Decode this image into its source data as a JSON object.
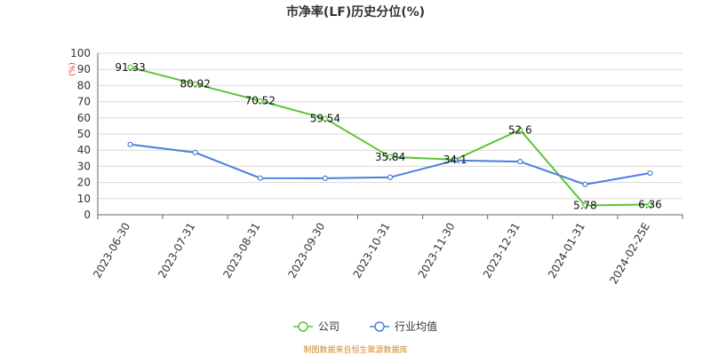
{
  "chart_data": {
    "type": "line",
    "title": "市净率(LF)历史分位(%)",
    "unit": "(%)",
    "ylim": [
      0,
      100
    ],
    "yticks": [
      0,
      10,
      20,
      30,
      40,
      50,
      60,
      70,
      80,
      90,
      100
    ],
    "categories": [
      "2023-06-30",
      "2023-07-31",
      "2023-08-31",
      "2023-09-30",
      "2023-10-31",
      "2023-11-30",
      "2023-12-31",
      "2024-01-31",
      "2024-02-25E"
    ],
    "series": [
      {
        "name": "公司",
        "color": "#5cc434",
        "values": [
          91.33,
          80.92,
          70.52,
          59.54,
          35.84,
          34.1,
          52.6,
          5.78,
          6.36
        ],
        "labels": [
          "91.33",
          "80.92",
          "70.52",
          "59.54",
          "35.84",
          "34.1",
          "52.6",
          "5.78",
          "6.36"
        ]
      },
      {
        "name": "行业均值",
        "color": "#4a7fdc",
        "values": [
          43.5,
          38.5,
          22.7,
          22.6,
          23.2,
          33.7,
          32.9,
          18.8,
          25.8
        ]
      }
    ],
    "grid": true,
    "legend": "bottom-center",
    "source": "制图数据来自恒生聚源数据库"
  }
}
